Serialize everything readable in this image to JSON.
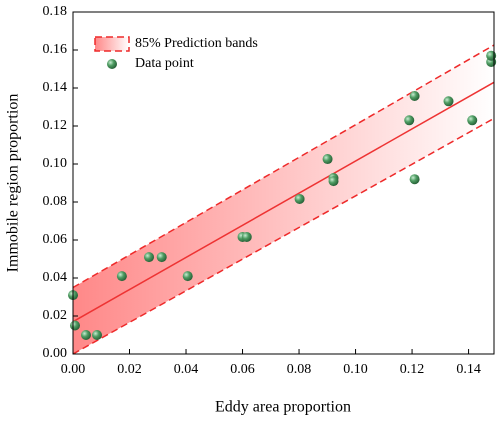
{
  "chart_data": {
    "type": "scatter",
    "x_label": "Eddy area proportion",
    "y_label": "Immobile region proportion",
    "xlim": [
      0,
      0.149
    ],
    "ylim": [
      0,
      0.18
    ],
    "xticks": [
      {
        "value": 0,
        "label": "0.00"
      },
      {
        "value": 0.02,
        "label": "0.02"
      },
      {
        "value": 0.04,
        "label": "0.04"
      },
      {
        "value": 0.06,
        "label": "0.06"
      },
      {
        "value": 0.08,
        "label": "0.08"
      },
      {
        "value": 0.1,
        "label": "0.10"
      },
      {
        "value": 0.12,
        "label": "0.12"
      },
      {
        "value": 0.14,
        "label": "0.14"
      }
    ],
    "yticks": [
      {
        "value": 0,
        "label": "0.00"
      },
      {
        "value": 0.02,
        "label": "0.02"
      },
      {
        "value": 0.04,
        "label": "0.04"
      },
      {
        "value": 0.06,
        "label": "0.06"
      },
      {
        "value": 0.08,
        "label": "0.08"
      },
      {
        "value": 0.1,
        "label": "0.10"
      },
      {
        "value": 0.12,
        "label": "0.12"
      },
      {
        "value": 0.14,
        "label": "0.14"
      },
      {
        "value": 0.16,
        "label": "0.16"
      },
      {
        "value": 0.18,
        "label": "0.18"
      }
    ],
    "legend": "upper left",
    "band": {
      "name": "85% Prediction bands",
      "color": "#ee2a2a",
      "x": [
        0,
        0.149
      ],
      "upper": [
        0.035,
        0.1626
      ],
      "lower": [
        0,
        0.124
      ]
    },
    "fit_line": {
      "color": "#ee3333",
      "x": [
        0,
        0.149
      ],
      "values": [
        0.017,
        0.143
      ]
    },
    "series": [
      {
        "name": "Data point",
        "color": "#3f8f55",
        "x": [
          0,
          0.0007,
          0.0046,
          0.0085,
          0.0173,
          0.0269,
          0.0314,
          0.0406,
          0.06,
          0.0615,
          0.0802,
          0.0901,
          0.0922,
          0.0922,
          0.119,
          0.1209,
          0.1209,
          0.1329,
          0.1413,
          0.148,
          0.148
        ],
        "values": [
          0.031,
          0.015,
          0.01,
          0.01,
          0.041,
          0.051,
          0.051,
          0.041,
          0.0616,
          0.0616,
          0.0816,
          0.1026,
          0.0926,
          0.091,
          0.123,
          0.1358,
          0.092,
          0.133,
          0.123,
          0.1537,
          0.157
        ]
      }
    ]
  }
}
